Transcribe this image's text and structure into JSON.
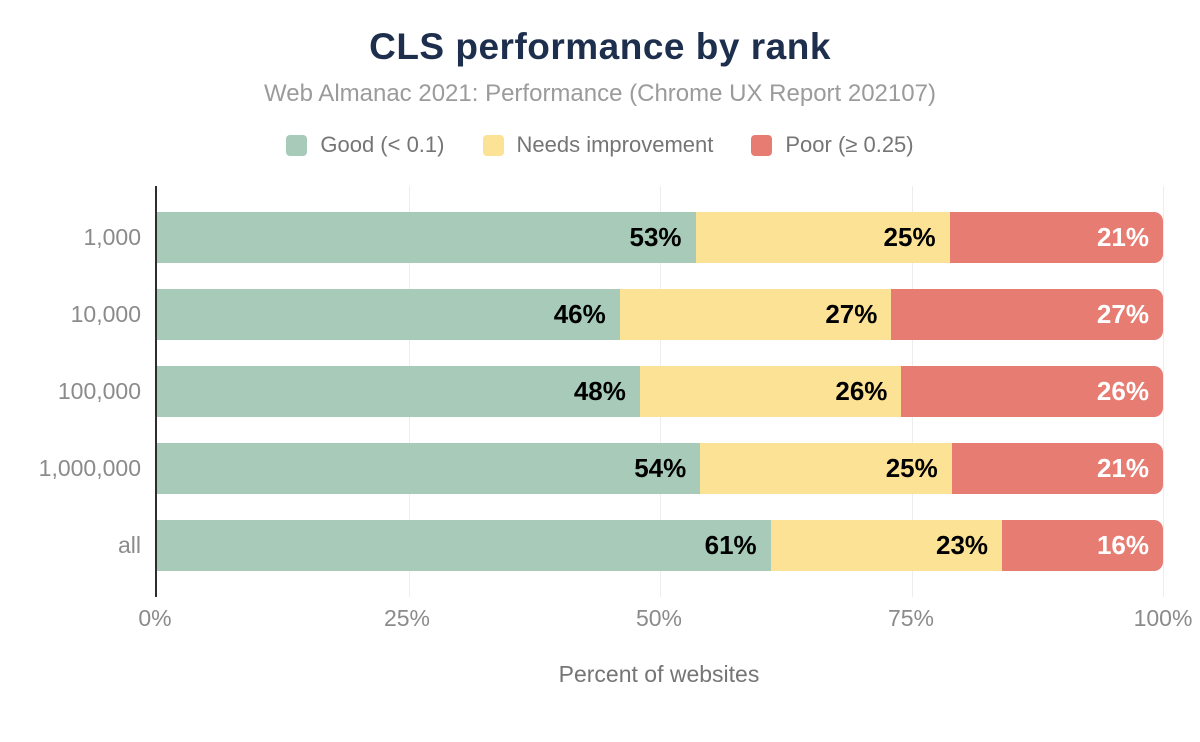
{
  "header": {
    "title": "CLS performance by rank",
    "subtitle": "Web Almanac 2021: Performance (Chrome UX Report 202107)"
  },
  "chart_data": {
    "type": "bar",
    "orientation": "horizontal",
    "stacked": true,
    "title": "CLS performance by rank",
    "subtitle": "Web Almanac 2021: Performance (Chrome UX Report 202107)",
    "categories": [
      "1,000",
      "10,000",
      "100,000",
      "1,000,000",
      "all"
    ],
    "series": [
      {
        "name": "Good (< 0.1)",
        "color": "#a7cbb8",
        "values": [
          53,
          46,
          48,
          54,
          61
        ]
      },
      {
        "name": "Needs improvement",
        "color": "#fce294",
        "values": [
          25,
          27,
          26,
          25,
          23
        ]
      },
      {
        "name": "Poor (≥ 0.25)",
        "color": "#e67c72",
        "values": [
          21,
          27,
          26,
          21,
          16
        ]
      }
    ],
    "value_suffix": "%",
    "xlabel": "Percent of websites",
    "xticks": [
      0,
      25,
      50,
      75,
      100
    ],
    "xtick_labels": [
      "0%",
      "25%",
      "50%",
      "75%",
      "100%"
    ],
    "xlim": [
      0,
      100
    ],
    "grid": "vertical",
    "legend_position": "top",
    "value_label_colors": [
      "#000000",
      "#000000",
      "#ffffff"
    ]
  },
  "colors": {
    "title_text": "#1e2f4e",
    "muted_text": "#8b8b8b",
    "axis_line": "#2d2d2d",
    "gridline": "#ededed",
    "background": "#ffffff"
  }
}
